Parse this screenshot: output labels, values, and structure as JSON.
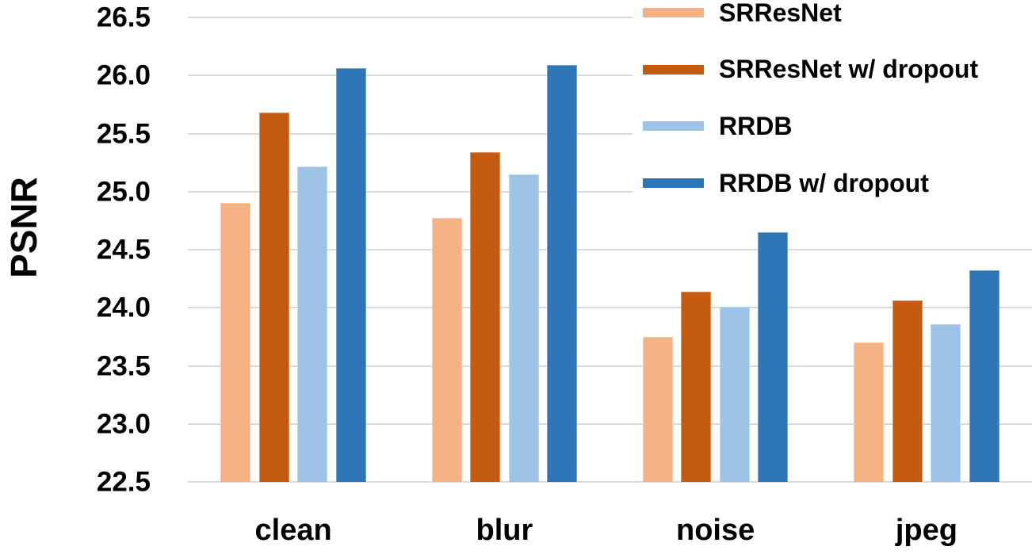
{
  "chart_data": {
    "type": "bar",
    "title": "",
    "xlabel": "",
    "ylabel": "PSNR",
    "ylim": [
      22.5,
      26.5
    ],
    "ytick_labels": [
      "26.5",
      "26.0",
      "25.5",
      "25.0",
      "24.5",
      "24.0",
      "23.5",
      "23.0",
      "22.5"
    ],
    "ytick_values": [
      26.5,
      26.0,
      25.5,
      25.0,
      24.5,
      24.0,
      23.5,
      23.0,
      22.5
    ],
    "grid": true,
    "legend_position": "top-right",
    "categories": [
      "clean",
      "blur",
      "noise",
      "jpeg"
    ],
    "series": [
      {
        "name": "SRResNet",
        "color": "#F4B183",
        "values": [
          24.9,
          24.77,
          23.75,
          23.7
        ]
      },
      {
        "name": "SRResNet w/ dropout",
        "color": "#C55A11",
        "values": [
          25.68,
          25.34,
          24.14,
          24.06
        ]
      },
      {
        "name": "RRDB",
        "color": "#9DC3E6",
        "values": [
          25.22,
          25.15,
          24.01,
          23.86
        ]
      },
      {
        "name": "RRDB w/ dropout",
        "color": "#2E75B6",
        "values": [
          26.06,
          26.09,
          24.65,
          24.32
        ]
      }
    ],
    "colors": {
      "gridline": "#D9D9D9",
      "text": "#000000",
      "background": "#FFFFFF"
    }
  }
}
